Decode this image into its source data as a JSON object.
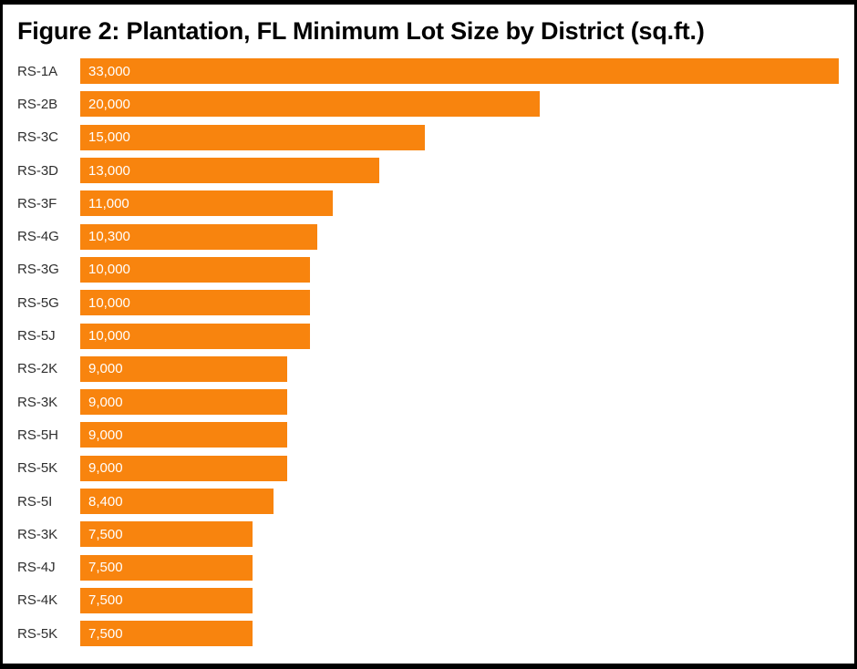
{
  "title": "Figure 2: Plantation, FL Minimum Lot Size by District (sq.ft.)",
  "chart_data": {
    "type": "bar",
    "orientation": "horizontal",
    "title": "Figure 2: Plantation, FL Minimum Lot Size by District (sq.ft.)",
    "xlabel": "",
    "ylabel": "",
    "categories": [
      "RS-1A",
      "RS-2B",
      "RS-3C",
      "RS-3D",
      "RS-3F",
      "RS-4G",
      "RS-3G",
      "RS-5G",
      "RS-5J",
      "RS-2K",
      "RS-3K",
      "RS-5H",
      "RS-5K",
      "RS-5I",
      "RS-3K",
      "RS-4J",
      "RS-4K",
      "RS-5K"
    ],
    "values": [
      33000,
      20000,
      15000,
      13000,
      11000,
      10300,
      10000,
      10000,
      10000,
      9000,
      9000,
      9000,
      9000,
      8400,
      7500,
      7500,
      7500,
      7500
    ],
    "value_labels": [
      "33,000",
      "20,000",
      "15,000",
      "13,000",
      "11,000",
      "10,300",
      "10,000",
      "10,000",
      "10,000",
      "9,000",
      "9,000",
      "9,000",
      "9,000",
      "8,400",
      "7,500",
      "7,500",
      "7,500",
      "7,500"
    ],
    "xlim": [
      0,
      33000
    ],
    "grid": false,
    "legend": false,
    "bar_color": "#F8840E",
    "value_text_color": "#ffffff",
    "category_label_color": "#2e2e2e",
    "frame_border_color": "#000000",
    "background_color": "#ffffff"
  }
}
